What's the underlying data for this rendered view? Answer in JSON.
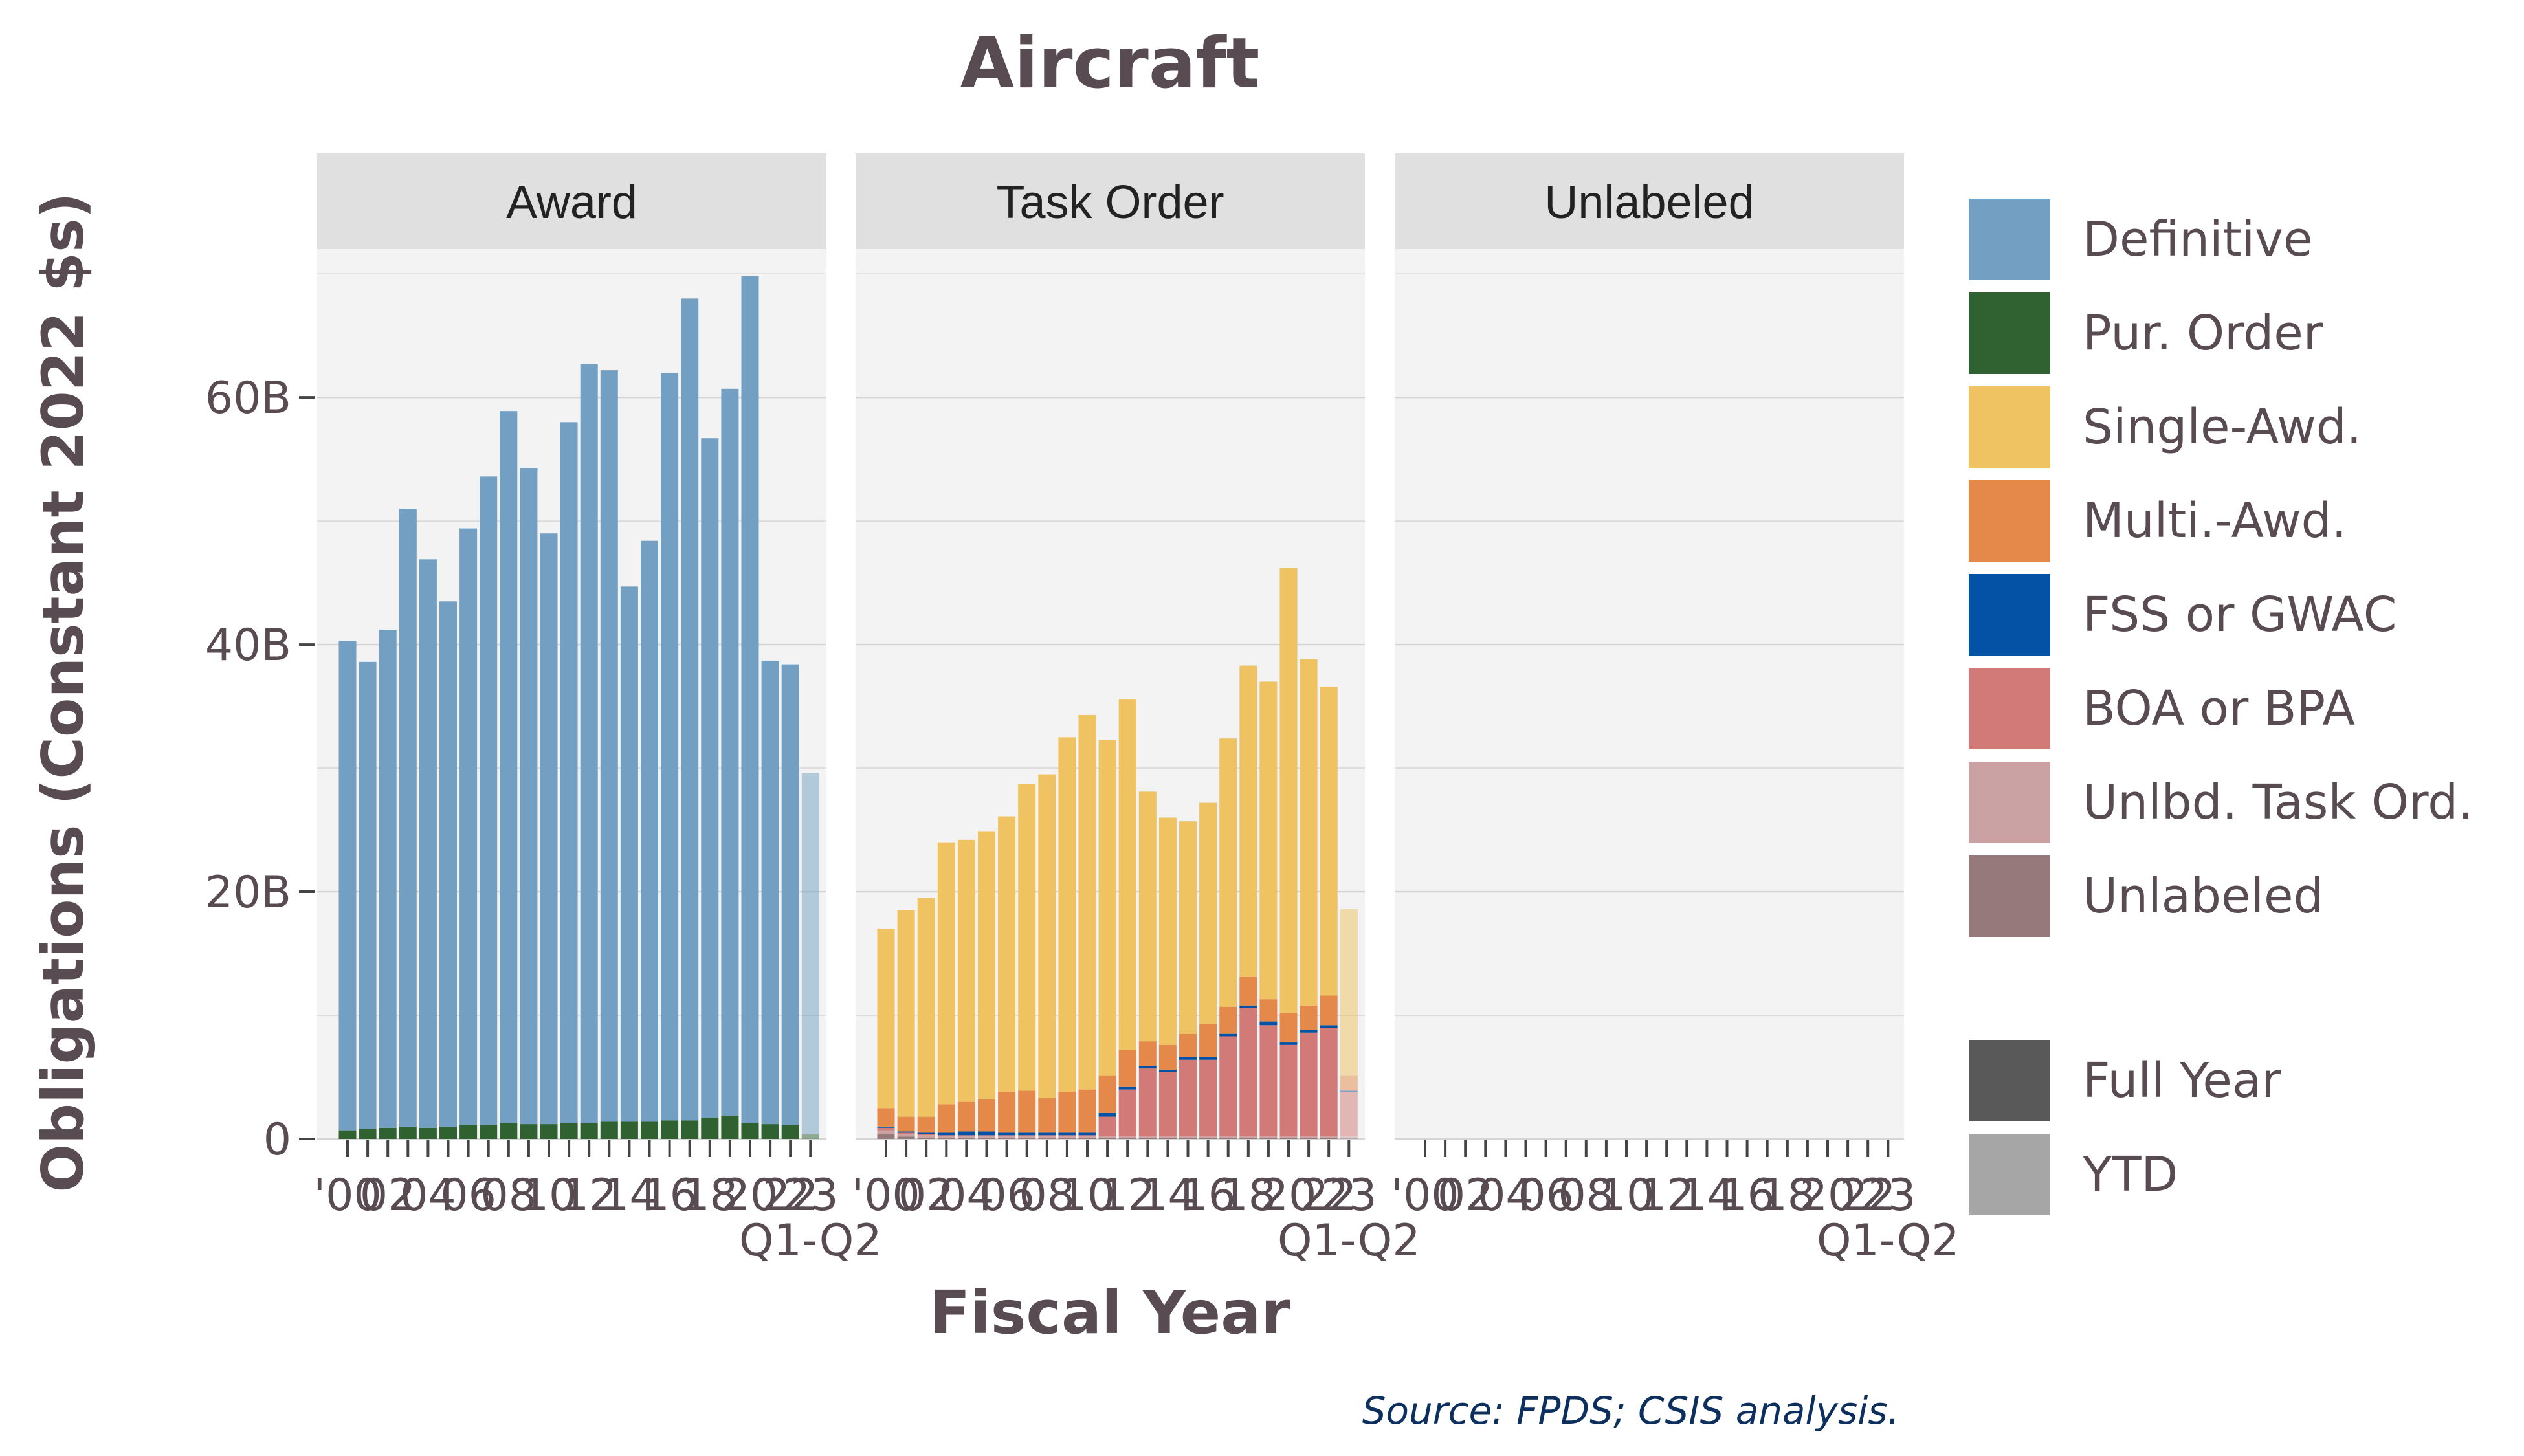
{
  "chart_data": {
    "type": "bar",
    "stacked": true,
    "title": "Aircraft",
    "xlabel": "Fiscal Year",
    "ylabel": "Obligations (Constant 2022 $s)",
    "source": "Source: FPDS; CSIS analysis.",
    "ylim": [
      0,
      72
    ],
    "yticks": [
      0,
      20,
      40,
      60
    ],
    "ytick_labels": [
      "0",
      "20B",
      "40B",
      "60B"
    ],
    "grid": true,
    "legend_position": "right",
    "x_tick_labels": [
      "'00",
      "02",
      "04",
      "06",
      "08",
      "10",
      "12",
      "14",
      "16",
      "18",
      "20",
      "22",
      "23",
      "Q1-Q2"
    ],
    "years": [
      "2000",
      "2001",
      "2002",
      "2003",
      "2004",
      "2005",
      "2006",
      "2007",
      "2008",
      "2009",
      "2010",
      "2011",
      "2012",
      "2013",
      "2014",
      "2015",
      "2016",
      "2017",
      "2018",
      "2019",
      "2020",
      "2021",
      "2022",
      "2023"
    ],
    "ytd_index": 23,
    "panels": [
      {
        "name": "Award",
        "series": [
          {
            "name": "Pur. Order",
            "values": [
              0.7,
              0.8,
              0.9,
              1.0,
              0.9,
              1.0,
              1.1,
              1.1,
              1.3,
              1.2,
              1.2,
              1.3,
              1.3,
              1.4,
              1.4,
              1.4,
              1.5,
              1.5,
              1.7,
              1.9,
              1.3,
              1.2,
              1.1,
              0.4
            ]
          },
          {
            "name": "Definitive",
            "values": [
              39.6,
              37.8,
              40.3,
              50.0,
              46.0,
              42.5,
              48.3,
              52.5,
              57.6,
              53.1,
              47.8,
              56.7,
              61.4,
              60.8,
              43.3,
              47.0,
              60.5,
              66.5,
              55.0,
              58.8,
              68.5,
              37.5,
              37.3,
              29.2
            ]
          }
        ]
      },
      {
        "name": "Task Order",
        "series": [
          {
            "name": "Unlabeled",
            "values": [
              0.4,
              0.2,
              0.1,
              0.1,
              0.1,
              0.1,
              0.1,
              0.1,
              0.1,
              0.1,
              0.1,
              0.1,
              0.1,
              0.1,
              0.1,
              0.1,
              0.1,
              0.1,
              0.1,
              0.1,
              0.1,
              0.1,
              0.1,
              0.1
            ]
          },
          {
            "name": "Unlbd. Task Ord.",
            "values": [
              0.3,
              0.2,
              0.2,
              0.1,
              0.1,
              0.1,
              0.1,
              0.1,
              0.1,
              0.1,
              0.1,
              0.1,
              0.1,
              0.1,
              0.1,
              0.1,
              0.1,
              0.1,
              0.1,
              0.1,
              0.1,
              0.1,
              0.1,
              0.1
            ]
          },
          {
            "name": "BOA or BPA",
            "values": [
              0.2,
              0.1,
              0.1,
              0.1,
              0.1,
              0.1,
              0.1,
              0.1,
              0.1,
              0.1,
              0.1,
              1.6,
              3.8,
              5.5,
              5.2,
              6.2,
              6.2,
              8.1,
              10.4,
              9.0,
              7.4,
              8.4,
              8.8,
              3.6
            ]
          },
          {
            "name": "FSS or GWAC",
            "values": [
              0.1,
              0.1,
              0.1,
              0.2,
              0.3,
              0.3,
              0.2,
              0.2,
              0.2,
              0.2,
              0.2,
              0.3,
              0.2,
              0.2,
              0.2,
              0.2,
              0.2,
              0.2,
              0.2,
              0.3,
              0.2,
              0.2,
              0.2,
              0.1
            ]
          },
          {
            "name": "Multi.-Awd.",
            "values": [
              1.5,
              1.2,
              1.3,
              2.3,
              2.4,
              2.6,
              3.3,
              3.4,
              2.8,
              3.3,
              3.5,
              3.0,
              3.0,
              2.0,
              2.0,
              1.9,
              2.7,
              2.2,
              2.3,
              1.8,
              2.4,
              2.0,
              2.4,
              1.2
            ]
          },
          {
            "name": "Single-Awd.",
            "values": [
              14.5,
              16.7,
              17.7,
              21.2,
              21.2,
              21.7,
              22.3,
              24.8,
              26.2,
              28.7,
              30.3,
              27.2,
              28.4,
              20.2,
              18.4,
              17.2,
              17.9,
              21.7,
              25.2,
              25.7,
              36.0,
              28.0,
              25.0,
              13.5
            ]
          }
        ]
      },
      {
        "name": "Unlabeled",
        "series": []
      }
    ],
    "legend": {
      "fill_entries": [
        {
          "name": "Definitive",
          "color": "#729fc2"
        },
        {
          "name": "Pur. Order",
          "color": "#2f6131"
        },
        {
          "name": "Single-Awd.",
          "color": "#efc262"
        },
        {
          "name": "Multi.-Awd.",
          "color": "#e4894a"
        },
        {
          "name": "FSS or GWAC",
          "color": "#0452a5"
        },
        {
          "name": "BOA or BPA",
          "color": "#d27a78"
        },
        {
          "name": "Unlbd. Task Ord.",
          "color": "#cba2a3"
        },
        {
          "name": "Unlabeled",
          "color": "#95797b"
        }
      ],
      "alpha_entries": [
        {
          "name": "Full Year",
          "color": "#595959"
        },
        {
          "name": "YTD",
          "color": "#a6a6a6"
        }
      ]
    },
    "colors": {
      "Definitive": "#729fc2",
      "Pur. Order": "#2f6131",
      "Single-Awd.": "#efc262",
      "Multi.-Awd.": "#e4894a",
      "FSS or GWAC": "#0452a5",
      "BOA or BPA": "#d27a78",
      "Unlbd. Task Ord.": "#cba2a3",
      "Unlabeled": "#95797b",
      "panel_background": "#f3f3f3",
      "strip_background": "#e0e0e0",
      "grid": "#d4d4d4",
      "text": "#584b52",
      "source_text": "#0d2f5e"
    }
  }
}
